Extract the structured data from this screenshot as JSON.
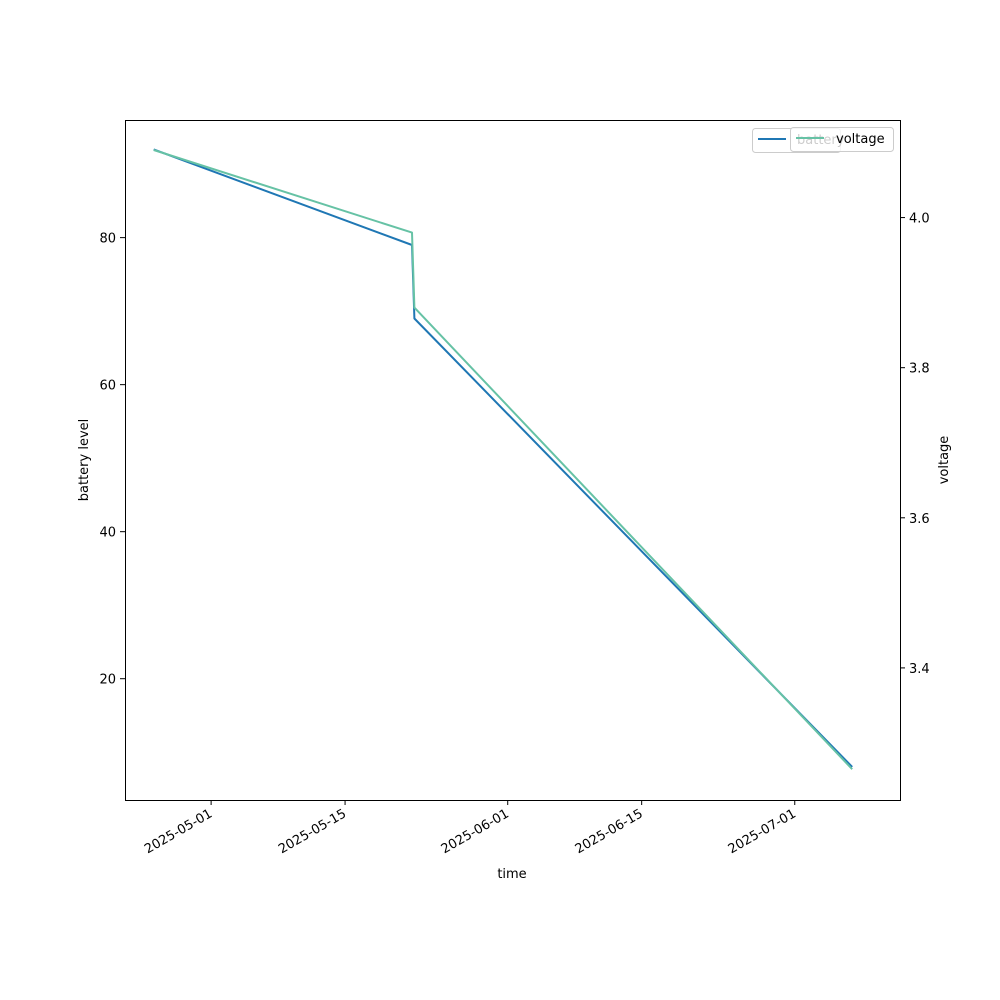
{
  "chart_data": {
    "type": "line",
    "xlabel": "time",
    "ylabel": "battery level",
    "y2label": "voltage",
    "x_axis": {
      "type": "date",
      "range": [
        "2025-04-22",
        "2025-07-12"
      ],
      "ticks": [
        "2025-05-01",
        "2025-05-15",
        "2025-06-01",
        "2025-06-15",
        "2025-07-01"
      ]
    },
    "y_axis": {
      "range": [
        3.5,
        96
      ],
      "ticks": [
        20,
        40,
        60,
        80
      ]
    },
    "y2_axis": {
      "range": [
        3.224,
        4.13
      ],
      "ticks": [
        3.4,
        3.6,
        3.8,
        4.0
      ]
    },
    "series": [
      {
        "name": "battery",
        "axis": "left",
        "color": "#1f77b4",
        "points": [
          {
            "x": "2025-04-25",
            "y": 92
          },
          {
            "x": "2025-05-22",
            "y": 79
          },
          {
            "x": "2025-05-22T06:00",
            "y": 69
          },
          {
            "x": "2025-07-07",
            "y": 8
          }
        ]
      },
      {
        "name": "voltage",
        "axis": "right",
        "color": "#66c2a5",
        "points": [
          {
            "x": "2025-04-25",
            "y": 4.09
          },
          {
            "x": "2025-05-22",
            "y": 3.98
          },
          {
            "x": "2025-05-22T06:00",
            "y": 3.88
          },
          {
            "x": "2025-07-07",
            "y": 3.265
          }
        ]
      }
    ],
    "grid": false,
    "legend_position": "top-right"
  }
}
